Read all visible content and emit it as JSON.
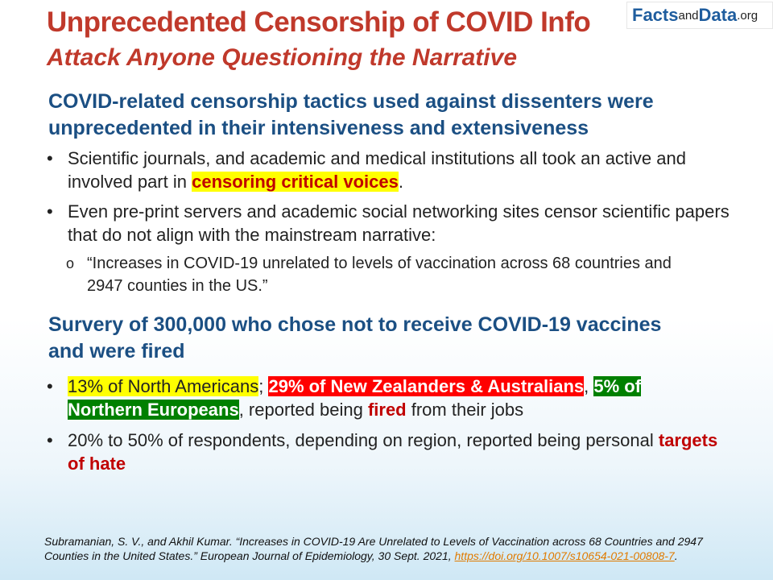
{
  "header": {
    "title_line1": "Unprecedented Censorship of COVID Info",
    "title_line2": "Attack Anyone Questioning the Narrative",
    "logo_part1": "Facts",
    "logo_part2": "and",
    "logo_part3": "Data",
    "logo_part4": ".org"
  },
  "section1": {
    "heading": "COVID-related censorship tactics used against dissenters were unprecedented in their intensiveness and extensiveness",
    "bullet1_text": "Scientific journals, and academic and medical institutions all took an active and involved part in ",
    "bullet1_highlight": "censoring critical voices",
    "bullet1_end": ".",
    "bullet2_text": "Even pre-print servers and academic social networking sites censor scientific papers that do not align with the mainstream narrative:",
    "sub_marker": "o",
    "sub_text": "“Increases in COVID-19 unrelated to levels of vaccination across 68 countries and 2947 counties in the US.”"
  },
  "section2": {
    "heading": "Survery of 300,000 who chose not to receive COVID-19 vaccines and were fired",
    "b1_part1": "13% of North Americans",
    "b1_sep1": "; ",
    "b1_part2": "29% of New Zealanders & Australians",
    "b1_sep2": ", ",
    "b1_part3": "5% of Northern Europeans",
    "b1_mid": ", reported being ",
    "b1_fired": "fired",
    "b1_end": " from their jobs",
    "b2_text": "20% to 50% of respondents, depending on region, reported being personal ",
    "b2_highlight": "targets of hate"
  },
  "bullet_char": "•",
  "reference": {
    "text": "Subramanian, S. V., and Akhil Kumar. “Increases in COVID-19 Are Unrelated to Levels of Vaccination across 68 Countries and 2947 Counties in the United States.” European Journal of Epidemiology, 30 Sept. 2021, ",
    "link": "https://doi.org/10.1007/s10654-021-00808-7",
    "end": "."
  },
  "colors": {
    "title": "#c0392b",
    "heading": "#1b4f83",
    "highlight_yellow": "#ffff00",
    "highlight_red": "#ff0000",
    "highlight_green": "#008000"
  }
}
